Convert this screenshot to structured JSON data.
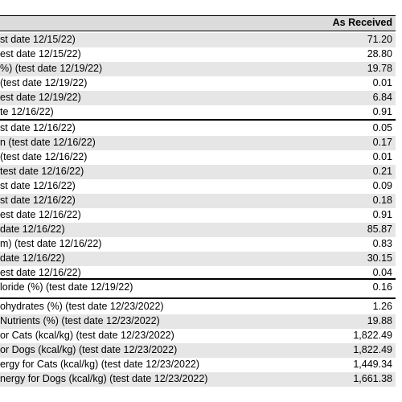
{
  "header": {
    "column": "As Received"
  },
  "rows": [
    {
      "label": "st date 12/15/22)",
      "value": "71.20",
      "shade": true
    },
    {
      "label": "est date 12/15/22)",
      "value": "28.80",
      "shade": false
    },
    {
      "label": "%) (test date 12/19/22)",
      "value": "19.78",
      "shade": true
    },
    {
      "label": " (test date 12/19/22)",
      "value": "0.01",
      "shade": false
    },
    {
      "label": "est date 12/19/22)",
      "value": "6.84",
      "shade": true
    },
    {
      "label": "te 12/16/22)",
      "value": "0.91",
      "shade": false
    },
    {
      "label": "st date 12/16/22)",
      "value": "0.05",
      "shade": false
    },
    {
      "label": "n (test date 12/16/22)",
      "value": "0.17",
      "shade": true
    },
    {
      "label": " (test date 12/16/22)",
      "value": "0.01",
      "shade": false
    },
    {
      "label": "test date 12/16/22)",
      "value": "0.21",
      "shade": true
    },
    {
      "label": "st date 12/16/22)",
      "value": "0.09",
      "shade": false
    },
    {
      "label": "st date 12/16/22)",
      "value": "0.18",
      "shade": true
    },
    {
      "label": "est date 12/16/22)",
      "value": "0.91",
      "shade": false
    },
    {
      "label": "date 12/16/22)",
      "value": "85.87",
      "shade": true
    },
    {
      "label": "m) (test date 12/16/22)",
      "value": "0.83",
      "shade": false
    },
    {
      "label": " date 12/16/22)",
      "value": "30.15",
      "shade": true
    },
    {
      "label": "est date 12/16/22)",
      "value": "0.04",
      "shade": false
    },
    {
      "label": "loride (%) (test date 12/19/22)",
      "value": "0.16",
      "shade": false
    },
    {
      "label": "ohydrates (%) (test date 12/23/2022)",
      "value": "1.26",
      "shade": false
    },
    {
      "label": "Nutrients (%) (test date 12/23/2022)",
      "value": "19.88",
      "shade": true
    },
    {
      "label": "or Cats (kcal/kg) (test date 12/23/2022)",
      "value": "1,822.49",
      "shade": false
    },
    {
      "label": "or Dogs (kcal/kg) (test date 12/23/2022)",
      "value": "1,822.49",
      "shade": true
    },
    {
      "label": "ergy for Cats (kcal/kg) (test date 12/23/2022)",
      "value": "1,449.34",
      "shade": false
    },
    {
      "label": "nergy for Dogs (kcal/kg) (test date 12/23/2022)",
      "value": "1,661.38",
      "shade": true
    }
  ]
}
